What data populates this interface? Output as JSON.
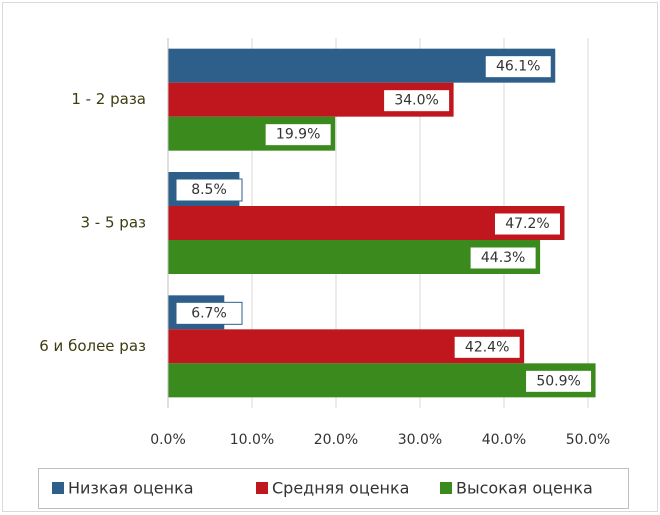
{
  "chart_data": {
    "type": "bar",
    "orientation": "horizontal",
    "categories": [
      "1 - 2 раза",
      "3 - 5 раз",
      "6 и более раз"
    ],
    "series": [
      {
        "name": "Низкая оценка",
        "color": "#2e5f8a",
        "values": [
          46.1,
          8.5,
          6.7
        ],
        "value_labels": [
          "46.1%",
          "8.5%",
          "6.7%"
        ]
      },
      {
        "name": "Средняя оценка",
        "color": "#c0171f",
        "values": [
          34.0,
          47.2,
          42.4
        ],
        "value_labels": [
          "34.0%",
          "47.2%",
          "42.4%"
        ]
      },
      {
        "name": "Высокая оценка",
        "color": "#3a8a1d",
        "values": [
          19.9,
          44.3,
          50.9
        ],
        "value_labels": [
          "19.9%",
          "44.3%",
          "50.9%"
        ]
      }
    ],
    "xlim": [
      0,
      50
    ],
    "xticks": [
      {
        "value": 0,
        "label": "0.0%"
      },
      {
        "value": 10,
        "label": "10.0%"
      },
      {
        "value": 20,
        "label": "20.0%"
      },
      {
        "value": 30,
        "label": "30.0%"
      },
      {
        "value": 40,
        "label": "40.0%"
      },
      {
        "value": 50,
        "label": "50.0%"
      }
    ],
    "grid": true,
    "legend": "bottom"
  }
}
